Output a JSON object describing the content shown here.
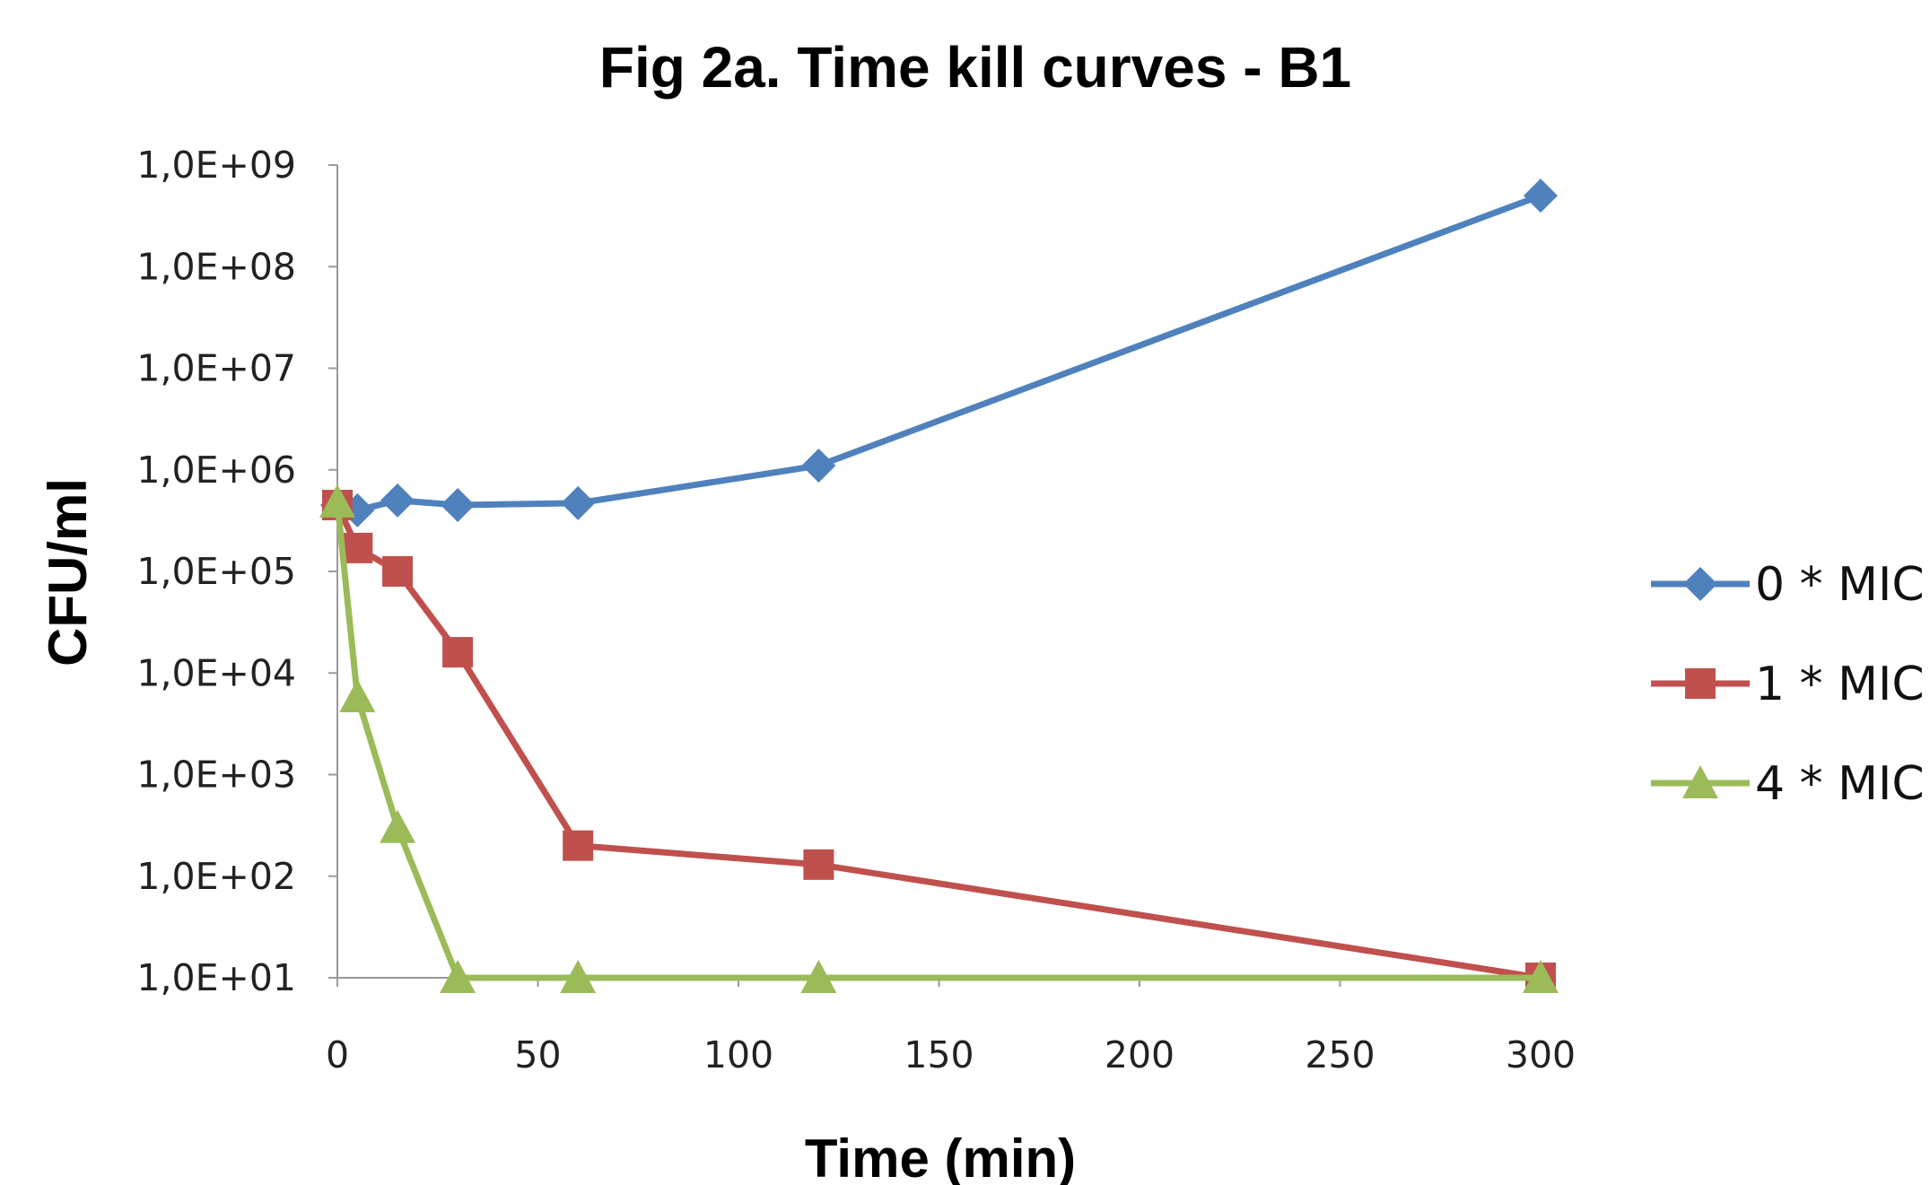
{
  "chart_data": {
    "type": "line",
    "title": "Fig 2a. Time kill curves - B1",
    "xlabel": "Time (min)",
    "ylabel": "CFU/ml",
    "xlim": [
      0,
      300
    ],
    "xticks": [
      0,
      50,
      100,
      150,
      200,
      250,
      300
    ],
    "yscale": "log",
    "ylim": [
      10,
      1000000000
    ],
    "yticks": [
      10,
      100,
      1000,
      10000,
      100000,
      1000000,
      10000000,
      100000000,
      1000000000
    ],
    "ytick_labels": [
      "1,0E+01",
      "1,0E+02",
      "1,0E+03",
      "1,0E+04",
      "1,0E+05",
      "1,0E+06",
      "1,0E+07",
      "1,0E+08",
      "1,0E+09"
    ],
    "grid": false,
    "legend_position": "right",
    "series": [
      {
        "name": "0 * MIC",
        "color": "#4F81BD",
        "marker": "diamond",
        "x": [
          0,
          5,
          15,
          30,
          60,
          120,
          300
        ],
        "y": [
          450000,
          400000,
          500000,
          450000,
          470000,
          1100000,
          500000000
        ]
      },
      {
        "name": "1 * MIC",
        "color": "#C0504D",
        "marker": "square",
        "x": [
          0,
          5,
          15,
          30,
          60,
          120,
          300
        ],
        "y": [
          450000,
          170000,
          100000,
          16000,
          200,
          130,
          10
        ]
      },
      {
        "name": "4 * MIC",
        "color": "#9BBB59",
        "marker": "triangle",
        "x": [
          0,
          5,
          15,
          30,
          60,
          120,
          300
        ],
        "y": [
          480000,
          5800,
          300,
          10,
          10,
          10,
          10
        ]
      }
    ]
  }
}
